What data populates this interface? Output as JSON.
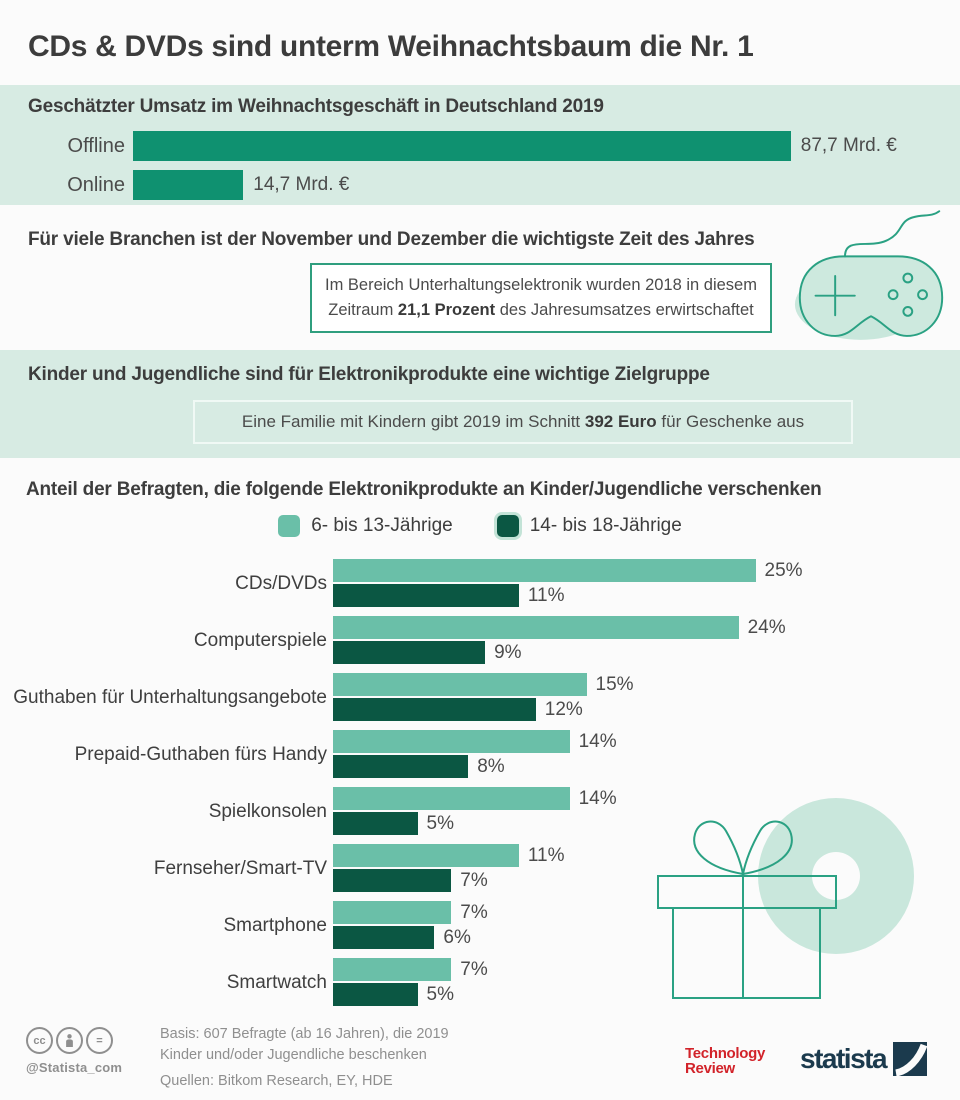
{
  "page": {
    "title": "CDs & DVDs sind unterm Weihnachtsbaum die Nr. 1"
  },
  "colors": {
    "band_background": "#d7ebe3",
    "primary_green": "#0f9170",
    "series_light_green": "#6abfa8",
    "series_dark_green": "#0b5743",
    "outline_green": "#2aa183",
    "illustration_fill": "#c9e7dc",
    "box_border_green": "#2f9e7e",
    "text_dark": "#3d3d3d",
    "footer_gray": "#8f8f8f",
    "techreview_red": "#d2232a",
    "statista_navy": "#1b3a4d"
  },
  "sections": {
    "branchen": {
      "header": "Für viele Branchen ist der November und Dezember die wichtigste Zeit des Jahres",
      "box": {
        "line1": "Im Bereich Unterhaltungselektronik wurden 2018 in diesem",
        "line2_pre": "Zeitraum ",
        "line2_bold": "21,1 Prozent",
        "line2_post": " des Jahresumsatzes erwirtschaftet"
      }
    },
    "kinder": {
      "header": "Kinder und Jugendliche sind für Elektronikprodukte eine wichtige Zielgruppe",
      "box": {
        "pre": "Eine Familie mit Kindern gibt 2019 im Schnitt ",
        "bold": "392 Euro",
        "post": " für Geschenke aus"
      }
    }
  },
  "chart_data": [
    {
      "type": "bar",
      "orientation": "horizontal",
      "title": "Geschätzter Umsatz im Weihnachtsgeschäft in Deutschland 2019",
      "categories": [
        "Offline",
        "Online"
      ],
      "values": [
        87.7,
        14.7
      ],
      "value_labels": [
        "87,7 Mrd. €",
        "14,7 Mrd. €"
      ],
      "unit": "Mrd. €",
      "xlim": [
        0,
        100
      ],
      "color": "#0f9170",
      "grid": false,
      "legend_position": "none"
    },
    {
      "type": "bar",
      "orientation": "horizontal",
      "title": "Anteil der Befragten, die folgende Elektronikprodukte an Kinder/Jugendliche verschenken",
      "categories": [
        "CDs/DVDs",
        "Computerspiele",
        "Guthaben für Unterhaltungsangebote",
        "Prepaid-Guthaben fürs Handy",
        "Spielkonsolen",
        "Fernseher/Smart-TV",
        "Smartphone",
        "Smartwatch"
      ],
      "series": [
        {
          "name": "6- bis 13-Jährige",
          "color": "#6abfa8",
          "values": [
            25,
            24,
            15,
            14,
            14,
            11,
            7,
            7
          ]
        },
        {
          "name": "14- bis 18-Jährige",
          "color": "#0b5743",
          "values": [
            11,
            9,
            12,
            8,
            5,
            7,
            6,
            5
          ]
        }
      ],
      "unit": "%",
      "xlim": [
        0,
        30
      ],
      "grid": false,
      "legend_position": "top-center"
    }
  ],
  "footer": {
    "basis_line1": "Basis: 607 Befragte (ab 16 Jahren), die 2019",
    "basis_line2": "Kinder und/oder Jugendliche beschenken",
    "sources": "Quellen: Bitkom Research, EY, HDE",
    "handle": "@Statista_com",
    "cc_label": "cc",
    "nd_label": "=",
    "tech_review_line1": "Technology",
    "tech_review_line2": "Review",
    "statista_wordmark": "statista"
  }
}
